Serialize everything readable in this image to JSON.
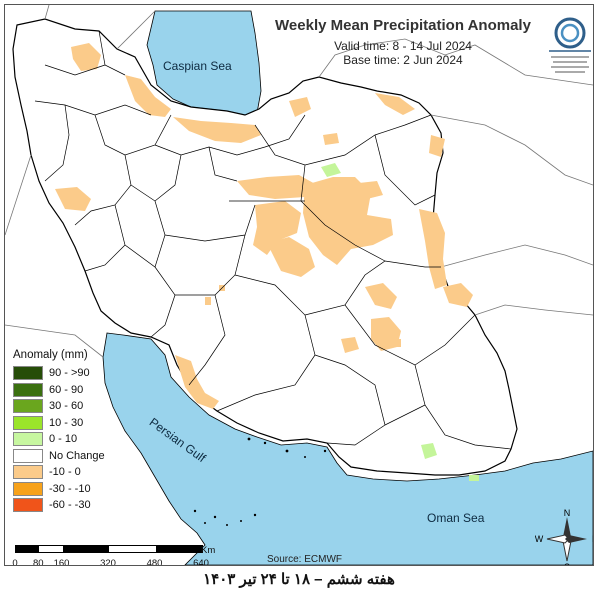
{
  "map": {
    "title": "Weekly Mean Precipitation Anomaly",
    "valid_time": "Valid time: 8 - 14 Jul 2024",
    "base_time": "Base time: 2 Jun 2024",
    "labels": {
      "caspian": "Caspian Sea",
      "persian_gulf": "Persian Gulf",
      "oman_sea": "Oman Sea"
    },
    "source": "Source: ECMWF",
    "colors": {
      "water": "#99d3ec",
      "land": "#ffffff",
      "border": "#000000",
      "anomaly_dry": "#fbcb8a",
      "anomaly_wet": "#c4f59a"
    }
  },
  "legend": {
    "title": "Anomaly (mm)",
    "items": [
      {
        "label": "90 - >90",
        "color": "#264d08"
      },
      {
        "label": "60 - 90",
        "color": "#3b7010"
      },
      {
        "label": "30 - 60",
        "color": "#6aa61e"
      },
      {
        "label": "10 - 30",
        "color": "#9be52a"
      },
      {
        "label": "0 - 10",
        "color": "#c7f7a0"
      },
      {
        "label": "No Change",
        "color": "#ffffff"
      },
      {
        "label": "-10 - 0",
        "color": "#fbcb8a"
      },
      {
        "label": "-30 - -10",
        "color": "#f7a21b"
      },
      {
        "label": "-60 - -30",
        "color": "#f0541a"
      }
    ]
  },
  "scale": {
    "unit": "Km",
    "ticks": [
      "0",
      "80",
      "160",
      "320",
      "480",
      "640"
    ]
  },
  "compass": {
    "n": "N",
    "s": "S",
    "e": "E",
    "w": "W"
  },
  "footer": "هفته ششم – ۱۸ تا ۲۴ تیر ۱۴۰۳"
}
